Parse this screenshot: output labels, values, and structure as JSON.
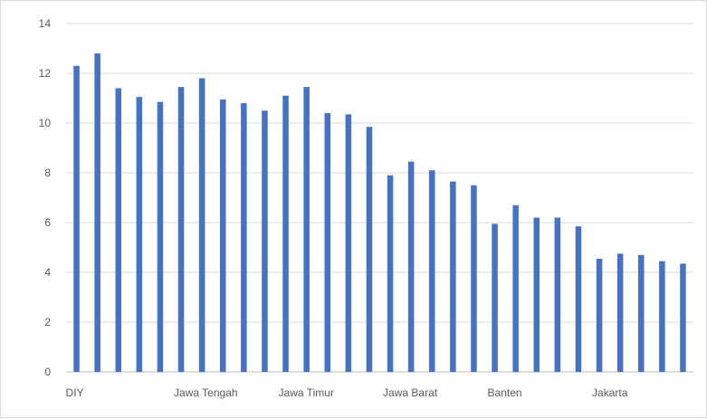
{
  "chart_data": {
    "type": "bar",
    "title": "",
    "xlabel": "",
    "ylabel": "",
    "ylim": [
      0,
      14
    ],
    "yticks": [
      0,
      2,
      4,
      6,
      8,
      10,
      12,
      14
    ],
    "grid": true,
    "legend": "none",
    "bar_color": "#4472c4",
    "categories": [
      "DIY",
      "",
      "",
      "",
      "",
      "Jawa Tengah",
      "",
      "",
      "",
      "",
      "Jawa Timur",
      "",
      "",
      "",
      "",
      "Jawa Barat",
      "",
      "",
      "",
      "",
      "Banten",
      "",
      "",
      "",
      "",
      "Jakarta",
      "",
      "",
      "",
      ""
    ],
    "series": [
      {
        "values": [
          12.3,
          12.8,
          11.4,
          11.05,
          10.85,
          11.45,
          11.8,
          10.95,
          10.8,
          10.5,
          11.1,
          11.45,
          10.4,
          10.35,
          9.85,
          7.9,
          8.45,
          8.1,
          7.65,
          7.5,
          5.95,
          6.7,
          6.2,
          6.2,
          5.85,
          4.55,
          4.75,
          4.7,
          4.45,
          4.35
        ]
      }
    ]
  }
}
